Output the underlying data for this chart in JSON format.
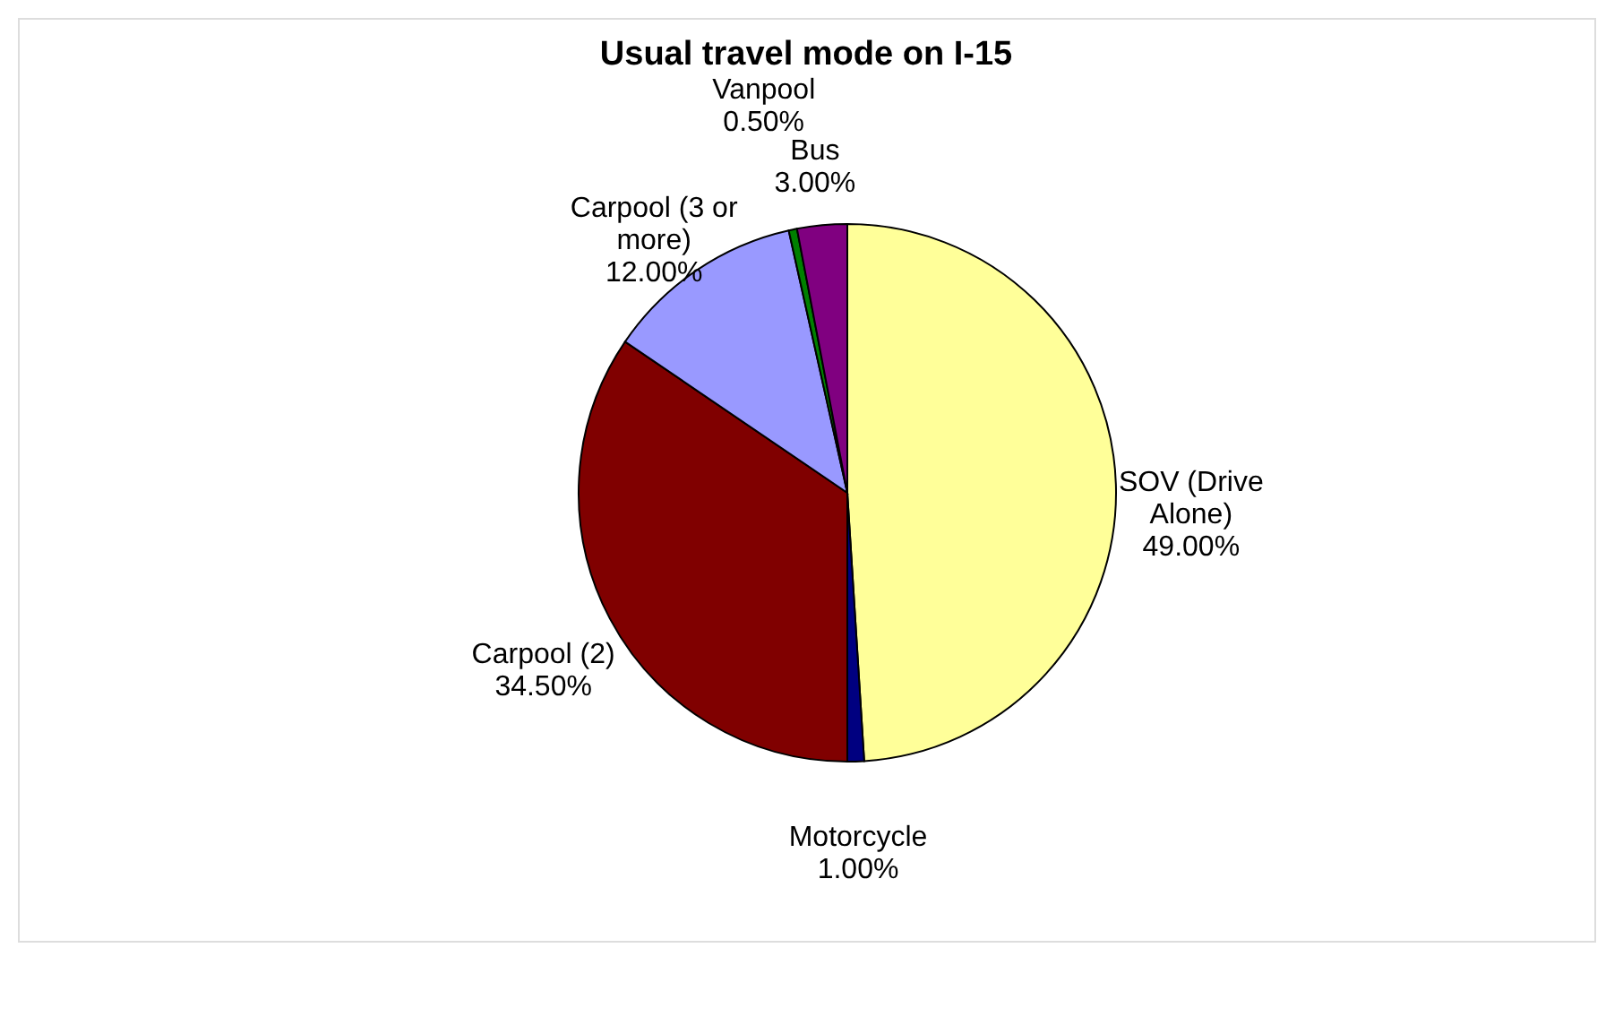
{
  "chart_data": {
    "type": "pie",
    "title": "Usual travel mode on I-15",
    "categories": [
      "SOV (Drive Alone)",
      "Motorcycle",
      "Carpool (2)",
      "Carpool (3 or more)",
      "Vanpool",
      "Bus"
    ],
    "values": [
      49,
      1,
      34.5,
      12,
      0.5,
      3
    ],
    "colors": [
      "#ffff99",
      "#000080",
      "#800000",
      "#9999ff",
      "#008000",
      "#800080"
    ],
    "value_labels": [
      "49.00%",
      "1.00%",
      "34.50%",
      "12.00%",
      "0.50%",
      "3.00%"
    ]
  }
}
